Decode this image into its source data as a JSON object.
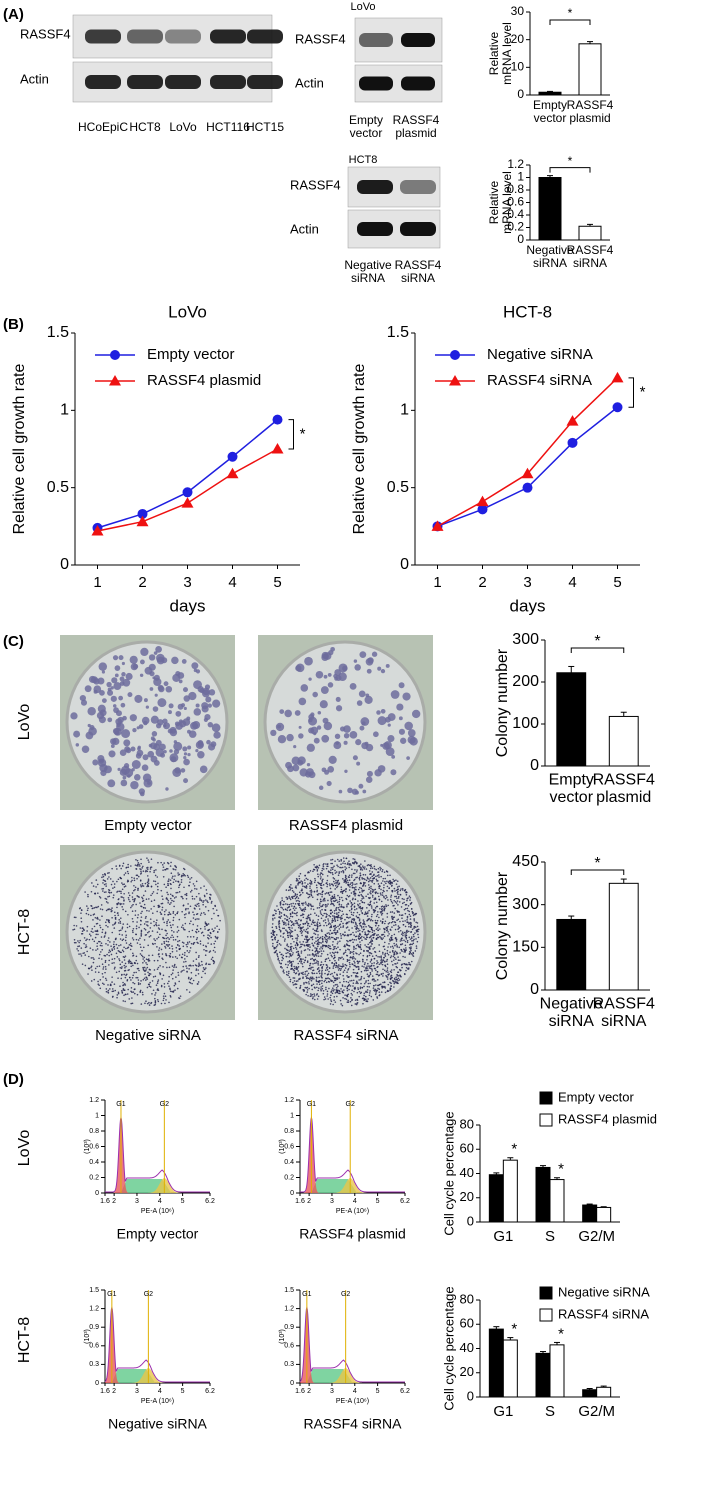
{
  "panel_labels": [
    "(A)",
    "(B)",
    "(C)",
    "(D)"
  ],
  "blots": [
    {
      "rows": [
        "RASSF4",
        "Actin"
      ],
      "lanes": [
        "HCoEpiC",
        "HCT8",
        "LoVo",
        "HCT116",
        "HCT15"
      ]
    },
    {
      "title": "LoVo",
      "rows": [
        "RASSF4",
        "Actin"
      ],
      "lanes": [
        "Empty vector",
        "RASSF4 plasmid"
      ]
    },
    {
      "title": "HCT8",
      "rows": [
        "RASSF4",
        "Actin"
      ],
      "lanes": [
        "Negative siRNA",
        "RASSF4 siRNA"
      ]
    }
  ],
  "colony_images": {
    "rows": [
      "LoVo",
      "HCT-8"
    ],
    "captions": [
      [
        "Empty vector",
        "RASSF4 plasmid"
      ],
      [
        "Negative siRNA",
        "RASSF4 siRNA"
      ]
    ]
  },
  "flow_rows": [
    "LoVo",
    "HCT-8"
  ],
  "chart_data": [
    {
      "type": "bar",
      "ylabel": "Relative mRNA level",
      "categories": [
        "Empty vector",
        "RASSF4 plasmid"
      ],
      "values": [
        1,
        18.5
      ],
      "errors": [
        0.3,
        0.8
      ],
      "colors": [
        "#000000",
        "#ffffff"
      ],
      "ylim": [
        0,
        30
      ],
      "yticks": [
        0,
        10,
        20,
        30
      ],
      "annotation": "*"
    },
    {
      "type": "bar",
      "ylabel": "Relative mRNA level",
      "categories": [
        "Negative siRNA",
        "RASSF4 siRNA"
      ],
      "values": [
        1,
        0.22
      ],
      "errors": [
        0.03,
        0.03
      ],
      "colors": [
        "#000000",
        "#ffffff"
      ],
      "ylim": [
        0,
        1.2
      ],
      "yticks": [
        0,
        0.2,
        0.4,
        0.6,
        0.8,
        1,
        1.2
      ],
      "annotation": "*"
    },
    {
      "type": "line",
      "title": "LoVo",
      "xlabel": "days",
      "ylabel": "Relative cell growth rate",
      "x": [
        1,
        2,
        3,
        4,
        5
      ],
      "xlim": [
        0.5,
        5.5
      ],
      "xticks": [
        1,
        2,
        3,
        4,
        5
      ],
      "ylim": [
        0,
        1.5
      ],
      "yticks": [
        0,
        0.5,
        1,
        1.5
      ],
      "annotation": "*",
      "series": [
        {
          "name": "Empty vector",
          "color": "#1f1fe0",
          "marker": "circle",
          "values": [
            0.24,
            0.33,
            0.47,
            0.7,
            0.94
          ]
        },
        {
          "name": "RASSF4 plasmid",
          "color": "#ee1111",
          "marker": "triangle",
          "values": [
            0.22,
            0.28,
            0.4,
            0.59,
            0.75
          ]
        }
      ]
    },
    {
      "type": "line",
      "title": "HCT-8",
      "xlabel": "days",
      "ylabel": "Relative cell growth rate",
      "x": [
        1,
        2,
        3,
        4,
        5
      ],
      "xlim": [
        0.5,
        5.5
      ],
      "xticks": [
        1,
        2,
        3,
        4,
        5
      ],
      "ylim": [
        0,
        1.5
      ],
      "yticks": [
        0,
        0.5,
        1,
        1.5
      ],
      "annotation": "*",
      "series": [
        {
          "name": "Negative siRNA",
          "color": "#1f1fe0",
          "marker": "circle",
          "values": [
            0.25,
            0.36,
            0.5,
            0.79,
            1.02
          ]
        },
        {
          "name": "RASSF4 siRNA",
          "color": "#ee1111",
          "marker": "triangle",
          "values": [
            0.25,
            0.41,
            0.59,
            0.93,
            1.21
          ]
        }
      ]
    },
    {
      "type": "bar",
      "ylabel": "Colony number",
      "categories": [
        "Empty vector",
        "RASSF4 plasmid"
      ],
      "values": [
        222,
        118
      ],
      "errors": [
        15,
        10
      ],
      "colors": [
        "#000000",
        "#ffffff"
      ],
      "ylim": [
        0,
        300
      ],
      "yticks": [
        0,
        100,
        200,
        300
      ],
      "annotation": "*"
    },
    {
      "type": "bar",
      "ylabel": "Colony number",
      "categories": [
        "Negative siRNA",
        "RASSF4 siRNA"
      ],
      "values": [
        248,
        375
      ],
      "errors": [
        12,
        15
      ],
      "colors": [
        "#000000",
        "#ffffff"
      ],
      "ylim": [
        0,
        450
      ],
      "yticks": [
        0,
        150,
        300,
        450
      ],
      "annotation": "*"
    },
    {
      "type": "grouped_bar",
      "ylabel": "Cell cycle percentage",
      "categories": [
        "G1",
        "S",
        "G2/M"
      ],
      "ylim": [
        0,
        80
      ],
      "yticks": [
        0,
        20,
        40,
        60,
        80
      ],
      "series": [
        {
          "name": "Empty vector",
          "color": "#000000",
          "values": [
            39,
            45,
            14
          ],
          "errors": [
            1.5,
            1.5,
            0.8
          ]
        },
        {
          "name": "RASSF4 plasmid",
          "color": "#ffffff",
          "values": [
            51,
            35,
            12
          ],
          "errors": [
            2,
            1.5,
            0.6
          ]
        }
      ],
      "annotations": [
        {
          "text": "*",
          "category": "G1"
        },
        {
          "text": "*",
          "category": "S"
        }
      ]
    },
    {
      "type": "grouped_bar",
      "ylabel": "Cell cycle percentage",
      "categories": [
        "G1",
        "S",
        "G2/M"
      ],
      "ylim": [
        0,
        80
      ],
      "yticks": [
        0,
        20,
        40,
        60,
        80
      ],
      "series": [
        {
          "name": "Negative siRNA",
          "color": "#000000",
          "values": [
            56,
            36,
            6
          ],
          "errors": [
            2,
            1.5,
            1
          ]
        },
        {
          "name": "RASSF4 siRNA",
          "color": "#ffffff",
          "values": [
            47,
            43,
            8
          ],
          "errors": [
            2,
            2,
            1
          ]
        }
      ],
      "annotations": [
        {
          "text": "*",
          "category": "G1"
        },
        {
          "text": "*",
          "category": "S"
        }
      ]
    },
    {
      "type": "flow",
      "caption": "Empty vector",
      "xlabel": "PE-A (10⁶)",
      "ylabel": "(10³)",
      "xlim": [
        1.6,
        6.2
      ],
      "xticks": [
        1.6,
        2,
        3,
        4,
        5,
        6.2
      ],
      "ylim": [
        0,
        1.2
      ],
      "yticks": [
        0,
        0.2,
        0.4,
        0.6,
        0.8,
        1,
        1.2
      ],
      "gates": [
        {
          "label": "G1",
          "x": 2.3
        },
        {
          "label": "G2",
          "x": 4.2
        }
      ]
    },
    {
      "type": "flow",
      "caption": "RASSF4 plasmid",
      "xlabel": "PE-A (10⁶)",
      "ylabel": "(10³)",
      "xlim": [
        1.6,
        6.2
      ],
      "xticks": [
        1.6,
        2,
        3,
        4,
        5,
        6.2
      ],
      "ylim": [
        0,
        1.2
      ],
      "yticks": [
        0,
        0.2,
        0.4,
        0.6,
        0.8,
        1,
        1.2
      ],
      "gates": [
        {
          "label": "G1",
          "x": 2.1
        },
        {
          "label": "G2",
          "x": 3.8
        }
      ]
    },
    {
      "type": "flow",
      "caption": "Negative siRNA",
      "xlabel": "PE-A (10⁶)",
      "ylabel": "(10³)",
      "xlim": [
        1.6,
        6.2
      ],
      "xticks": [
        1.6,
        2,
        3,
        4,
        5,
        6.2
      ],
      "ylim": [
        0,
        1.5
      ],
      "yticks": [
        0,
        0.3,
        0.6,
        0.9,
        1.2,
        1.5
      ],
      "gates": [
        {
          "label": "G1",
          "x": 1.9
        },
        {
          "label": "G2",
          "x": 3.5
        }
      ]
    },
    {
      "type": "flow",
      "caption": "RASSF4 siRNA",
      "xlabel": "PE-A (10⁶)",
      "ylabel": "(10³)",
      "xlim": [
        1.6,
        6.2
      ],
      "xticks": [
        1.6,
        2,
        3,
        4,
        5,
        6.2
      ],
      "ylim": [
        0,
        1.5
      ],
      "yticks": [
        0,
        0.3,
        0.6,
        0.9,
        1.2,
        1.5
      ],
      "gates": [
        {
          "label": "G1",
          "x": 1.9
        },
        {
          "label": "G2",
          "x": 3.6
        }
      ]
    }
  ]
}
